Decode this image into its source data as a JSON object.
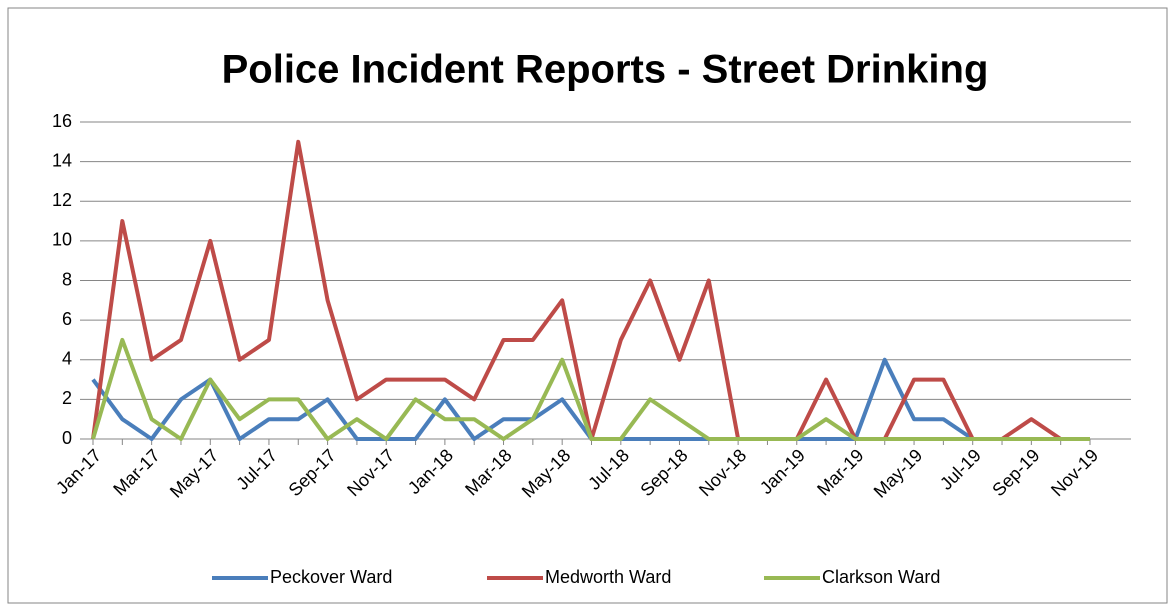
{
  "chart_data": {
    "type": "line",
    "title": "Police Incident Reports - Street Drinking",
    "categories": [
      "Jan-17",
      null,
      "Mar-17",
      null,
      "May-17",
      null,
      "Jul-17",
      null,
      "Sep-17",
      null,
      "Nov-17",
      null,
      "Jan-18",
      null,
      "Mar-18",
      null,
      "May-18",
      null,
      "Jul-18",
      null,
      "Sep-18",
      null,
      "Nov-18",
      null,
      "Jan-19",
      null,
      "Mar-19",
      null,
      "May-19",
      null,
      "Jul-19",
      null,
      "Sep-19",
      null,
      "Nov-19"
    ],
    "series": [
      {
        "name": "Peckover Ward",
        "color": "#4a7ebb",
        "values": [
          3,
          1,
          0,
          2,
          3,
          0,
          1,
          1,
          2,
          0,
          0,
          0,
          2,
          0,
          1,
          1,
          2,
          0,
          0,
          0,
          0,
          0,
          0,
          0,
          0,
          0,
          0,
          4,
          1,
          1,
          0,
          0,
          0,
          0,
          0
        ]
      },
      {
        "name": "Medworth Ward",
        "color": "#be4b48",
        "values": [
          0,
          11,
          4,
          5,
          10,
          4,
          5,
          15,
          7,
          2,
          3,
          3,
          3,
          2,
          5,
          5,
          7,
          0,
          5,
          8,
          4,
          8,
          0,
          0,
          0,
          3,
          0,
          0,
          3,
          3,
          0,
          0,
          1,
          0,
          0
        ]
      },
      {
        "name": "Clarkson Ward",
        "color": "#98b954",
        "values": [
          0,
          5,
          1,
          0,
          3,
          1,
          2,
          2,
          0,
          1,
          0,
          2,
          1,
          1,
          0,
          1,
          4,
          0,
          0,
          2,
          1,
          0,
          0,
          0,
          0,
          1,
          0,
          0,
          0,
          0,
          0,
          0,
          0,
          0,
          0
        ]
      }
    ],
    "ylim": [
      0,
      16
    ],
    "yticks": [
      0,
      2,
      4,
      6,
      8,
      10,
      12,
      14,
      16
    ],
    "grid": true,
    "legend": "bottom"
  }
}
